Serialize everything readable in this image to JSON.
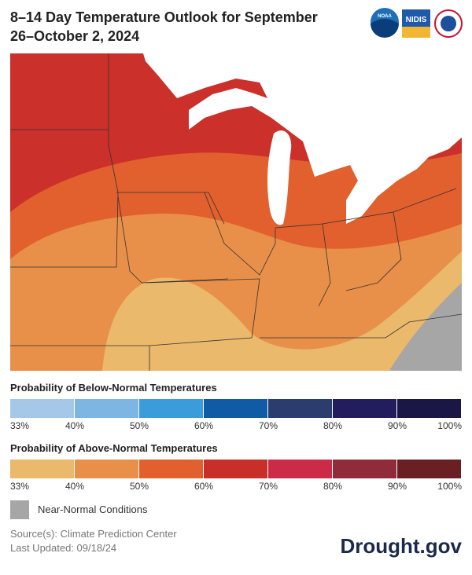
{
  "header": {
    "title": "8–14 Day Temperature Outlook for September 26–October 2, 2024",
    "logos": [
      "NOAA",
      "NIDIS"
    ]
  },
  "legend_below": {
    "title": "Probability of Below-Normal Temperatures",
    "colors": [
      "#a6c8e8",
      "#7db6e3",
      "#3a9cdb",
      "#0f5ba6",
      "#2b3d6e",
      "#221d5c",
      "#1a1747"
    ],
    "labels": [
      "33%",
      "40%",
      "50%",
      "60%",
      "70%",
      "80%",
      "90%",
      "100%"
    ]
  },
  "legend_above": {
    "title": "Probability of Above-Normal Temperatures",
    "colors": [
      "#eab96b",
      "#e8904a",
      "#e1602e",
      "#c72f28",
      "#cc2b47",
      "#902c3a",
      "#6a1f23"
    ],
    "labels": [
      "33%",
      "40%",
      "50%",
      "60%",
      "70%",
      "80%",
      "90%",
      "100%"
    ]
  },
  "near_normal": {
    "label": "Near-Normal Conditions",
    "color": "#a6a6a6"
  },
  "footer": {
    "source": "Source(s): Climate Prediction Center",
    "updated": "Last Updated: 09/18/24",
    "brand": "Drought.gov"
  }
}
